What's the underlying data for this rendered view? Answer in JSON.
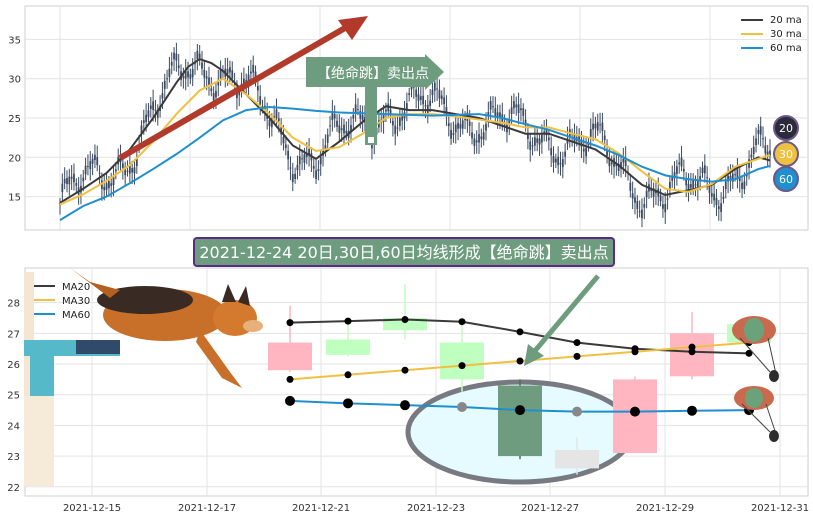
{
  "colors": {
    "ma20": "#3a3a3a",
    "ma30": "#f0c040",
    "ma60": "#1f8fd0",
    "candle": "#3b4a60",
    "bull_fill": "#bfffbf",
    "bear_fill": "#ffb6c1",
    "focus_fill": "#6e9c7e",
    "arrow_red": "#b23a2a",
    "arrow_green": "#6e9c7e",
    "banner_bg": "#6e9c7e",
    "banner_border": "#5b2a86"
  },
  "chart_data": [
    {
      "type": "candlestick",
      "panel": "overview",
      "ylim": [
        11,
        39
      ],
      "yticks": [
        15,
        20,
        25,
        30,
        35
      ],
      "legend": [
        "20 ma",
        "30 ma",
        "60 ma"
      ],
      "legend_position": "top-right",
      "grid": true,
      "badges": [
        "20",
        "30",
        "60"
      ],
      "annotation": "【绝命跳】卖出点",
      "series": [
        {
          "name": "20 ma",
          "x": [
            0,
            10,
            20,
            30,
            40,
            50,
            55,
            60,
            65,
            70,
            80,
            90,
            100,
            110,
            120,
            130,
            140,
            150,
            160,
            170,
            180,
            190,
            200,
            210,
            220,
            230,
            240,
            250,
            260,
            270,
            280,
            290,
            300,
            305
          ],
          "values": [
            14.2,
            16,
            18,
            21,
            25,
            29.5,
            31.5,
            32.5,
            32,
            31,
            28,
            25,
            21.5,
            19.8,
            22,
            24.5,
            26.5,
            26,
            26,
            25.5,
            25,
            24,
            23,
            23,
            22,
            21,
            19,
            16.5,
            15.2,
            15.8,
            16.5,
            18.5,
            20,
            19.6
          ]
        },
        {
          "name": "30 ma",
          "x": [
            0,
            10,
            20,
            30,
            40,
            50,
            60,
            70,
            80,
            90,
            100,
            110,
            120,
            130,
            140,
            150,
            160,
            170,
            180,
            190,
            200,
            210,
            220,
            230,
            240,
            250,
            260,
            270,
            280,
            290,
            300,
            305
          ],
          "values": [
            14,
            15.3,
            17,
            19,
            22,
            25.5,
            28.5,
            30,
            28,
            25.5,
            22.5,
            20.8,
            21.3,
            23,
            25,
            25.5,
            25.5,
            25.2,
            24.8,
            24.4,
            23.8,
            23.8,
            23,
            22.3,
            20.5,
            18.2,
            16,
            15.6,
            16.6,
            18.8,
            19.8,
            20.3
          ]
        },
        {
          "name": "60 ma",
          "x": [
            0,
            10,
            20,
            30,
            40,
            50,
            60,
            70,
            80,
            90,
            100,
            110,
            120,
            130,
            140,
            150,
            160,
            170,
            180,
            190,
            200,
            210,
            220,
            230,
            240,
            250,
            260,
            270,
            280,
            290,
            300,
            305
          ],
          "values": [
            12,
            13.8,
            15,
            16.7,
            18.5,
            20.4,
            22.5,
            24.7,
            26,
            26.4,
            26.2,
            25.9,
            25.7,
            25.6,
            25.5,
            25.4,
            25.3,
            25.4,
            25.5,
            25,
            24.2,
            23.5,
            22.5,
            21.5,
            20.3,
            18.8,
            17.7,
            17.2,
            16.9,
            17.2,
            18.5,
            18.9
          ]
        }
      ]
    },
    {
      "type": "candlestick",
      "panel": "detail",
      "ylim": [
        21.7,
        29
      ],
      "yticks": [
        22,
        23,
        24,
        25,
        26,
        27,
        28
      ],
      "xticks": [
        "2021-12-15",
        "2021-12-17",
        "2021-12-21",
        "2021-12-23",
        "2021-12-27",
        "2021-12-29",
        "2021-12-31"
      ],
      "legend": [
        "MA20",
        "MA30",
        "MA60"
      ],
      "legend_position": "top-left",
      "grid": true,
      "title": "2021-12-24 20日,30日,60日均线形成【绝命跳】卖出点",
      "candles": [
        {
          "date": "2021-12-20",
          "open": 25.8,
          "close": 26.7,
          "high": 27.9,
          "low": 25.75,
          "bull": false
        },
        {
          "date": "2021-12-21",
          "open": 26.3,
          "close": 26.8,
          "high": 27.3,
          "low": 26.25,
          "bull": true
        },
        {
          "date": "2021-12-22",
          "open": 27.1,
          "close": 27.5,
          "high": 28.6,
          "low": 26.8,
          "bull": true
        },
        {
          "date": "2021-12-23",
          "open": 25.5,
          "close": 26.7,
          "high": 27.4,
          "low": 25.1,
          "bull": true
        },
        {
          "date": "2021-12-24",
          "open": 25.3,
          "close": 23.0,
          "high": 25.5,
          "low": 22.9,
          "bull": false,
          "highlight": true
        },
        {
          "date": "2021-12-27",
          "open": 22.6,
          "close": 23.2,
          "high": 23.6,
          "low": 22.4,
          "bull": false,
          "muted": true
        },
        {
          "date": "2021-12-28",
          "open": 25.5,
          "close": 23.1,
          "high": 25.6,
          "low": 23.1,
          "bull": false
        },
        {
          "date": "2021-12-29",
          "open": 25.6,
          "close": 27.0,
          "high": 27.7,
          "low": 25.5,
          "bull": false
        },
        {
          "date": "2021-12-30",
          "open": 26.7,
          "close": 27.3,
          "high": 27.5,
          "low": 26.3,
          "bull": true
        }
      ],
      "series": [
        {
          "name": "MA20",
          "x": [
            "2021-12-20",
            "2021-12-21",
            "2021-12-22",
            "2021-12-23",
            "2021-12-24",
            "2021-12-27",
            "2021-12-28",
            "2021-12-29",
            "2021-12-30"
          ],
          "values": [
            27.35,
            27.4,
            27.45,
            27.38,
            27.05,
            26.7,
            26.5,
            26.4,
            26.35
          ]
        },
        {
          "name": "MA30",
          "x": [
            "2021-12-20",
            "2021-12-21",
            "2021-12-22",
            "2021-12-23",
            "2021-12-24",
            "2021-12-27",
            "2021-12-28",
            "2021-12-29",
            "2021-12-30"
          ],
          "values": [
            25.5,
            25.65,
            25.8,
            25.95,
            26.1,
            26.25,
            26.4,
            26.55,
            26.7
          ]
        },
        {
          "name": "MA60",
          "x": [
            "2021-12-20",
            "2021-12-21",
            "2021-12-22",
            "2021-12-23",
            "2021-12-24",
            "2021-12-27",
            "2021-12-28",
            "2021-12-29",
            "2021-12-30"
          ],
          "values": [
            24.8,
            24.72,
            24.66,
            24.6,
            24.5,
            24.45,
            24.45,
            24.48,
            24.5
          ]
        }
      ]
    }
  ]
}
